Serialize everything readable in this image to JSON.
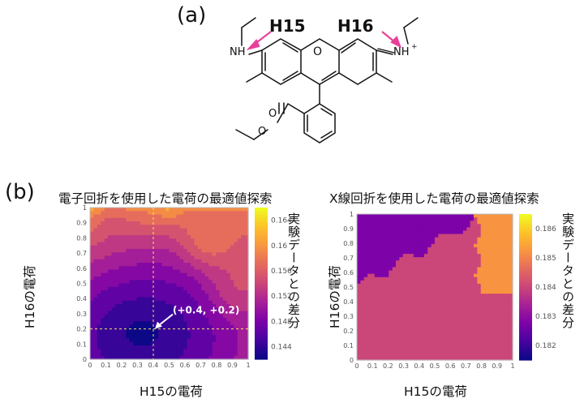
{
  "panels": {
    "a": "(a)",
    "b": "(b)"
  },
  "molecule": {
    "label_h15": "H15",
    "label_h16": "H16",
    "atom_nh": "NH",
    "atom_nh_plus": "NH",
    "charge": "+",
    "atom_o": "O"
  },
  "colors": {
    "arrow": "#e8409a",
    "bond": "#111111"
  },
  "chart_data": [
    {
      "type": "heatmap",
      "title": "電子回折を使用した電荷の最適値探索",
      "xlabel": "H15の電荷",
      "ylabel": "H16の電荷",
      "colorbar_label": "実験データとの差分",
      "x_ticks": [
        "0",
        "0.1",
        "0.2",
        "0.3",
        "0.4",
        "0.5",
        "0.6",
        "0.7",
        "0.8",
        "0.9",
        "1"
      ],
      "y_ticks": [
        "0",
        "0.1",
        "0.2",
        "0.3",
        "0.4",
        "0.5",
        "0.6",
        "0.7",
        "0.8",
        "0.9",
        "1"
      ],
      "xlim": [
        0,
        1
      ],
      "ylim": [
        0,
        1
      ],
      "colorbar_ticks": [
        "0.144",
        "0.148",
        "0.152",
        "0.156",
        "0.16",
        "0.164"
      ],
      "zlim": [
        0.142,
        0.166
      ],
      "colormap": "plasma",
      "levels": 12,
      "minimum_marker": {
        "x": 0.4,
        "y": 0.2,
        "label": "(+0.4, +0.2)"
      }
    },
    {
      "type": "heatmap",
      "title": "X線回折を使用した電荷の最適値探索",
      "xlabel": "H15の電荷",
      "ylabel": "H16の電荷",
      "colorbar_label": "実験データとの差分",
      "x_ticks": [
        "0",
        "0.1",
        "0.2",
        "0.3",
        "0.4",
        "0.5",
        "0.6",
        "0.7",
        "0.8",
        "0.9",
        "1"
      ],
      "y_ticks": [
        "0",
        "0.1",
        "0.2",
        "0.3",
        "0.4",
        "0.5",
        "0.6",
        "0.7",
        "0.8",
        "0.9",
        "1"
      ],
      "xlim": [
        0,
        1
      ],
      "ylim": [
        0,
        1
      ],
      "colorbar_ticks": [
        "0.182",
        "0.183",
        "0.184",
        "0.185",
        "0.186"
      ],
      "zlim": [
        0.1815,
        0.1865
      ],
      "colormap": "plasma",
      "levels": 5
    }
  ]
}
